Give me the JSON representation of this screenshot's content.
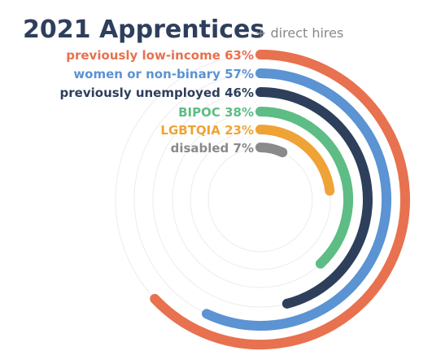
{
  "chart_data": {
    "type": "radial-bar",
    "title": "2021 Apprentices",
    "subtitle": "+ direct hires",
    "series": [
      {
        "name": "previously low-income",
        "value": 63,
        "label": "63%",
        "color": "#e8714f"
      },
      {
        "name": "women or non-binary",
        "value": 57,
        "label": "57%",
        "color": "#5b93d3"
      },
      {
        "name": "previously unemployed",
        "value": 46,
        "label": "46%",
        "color": "#2e3f5c"
      },
      {
        "name": "BIPOC",
        "value": 38,
        "label": "38%",
        "color": "#5dbd85"
      },
      {
        "name": "LGBTQIA",
        "value": 23,
        "label": "23%",
        "color": "#efa336"
      },
      {
        "name": "disabled",
        "value": 7,
        "label": "7%",
        "color": "#8a8a8a"
      }
    ],
    "max": 100
  }
}
